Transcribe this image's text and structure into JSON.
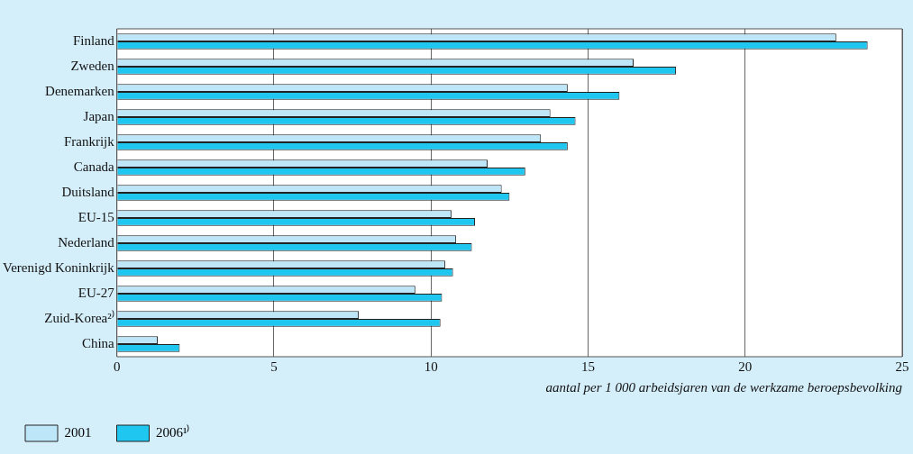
{
  "chart_data": {
    "type": "bar",
    "orientation": "horizontal",
    "categories": [
      "Finland",
      "Zweden",
      "Denemarken",
      "Japan",
      "Frankrijk",
      "Canada",
      "Duitsland",
      "EU-15",
      "Nederland",
      "Verenigd Koninkrijk",
      "EU-27",
      "Zuid-Korea²⁾",
      "China"
    ],
    "series": [
      {
        "name": "2001",
        "color": "#bde6f8",
        "values": [
          22.9,
          16.45,
          14.35,
          13.8,
          13.5,
          11.8,
          12.25,
          10.65,
          10.8,
          10.45,
          9.5,
          7.7,
          1.3
        ]
      },
      {
        "name": "2006¹⁾",
        "color": "#1ec6f0",
        "values": [
          23.9,
          17.8,
          16.0,
          14.6,
          14.35,
          13.0,
          12.5,
          11.4,
          11.3,
          10.7,
          10.35,
          10.3,
          2.0
        ]
      }
    ],
    "xlim": [
      0,
      25
    ],
    "xticks": [
      0,
      5,
      10,
      15,
      20,
      25
    ],
    "xlabel": "aantal per 1 000 arbeidsjaren van de werkzame beroepsbevolking",
    "grid": "x",
    "legend": "bottom left"
  }
}
